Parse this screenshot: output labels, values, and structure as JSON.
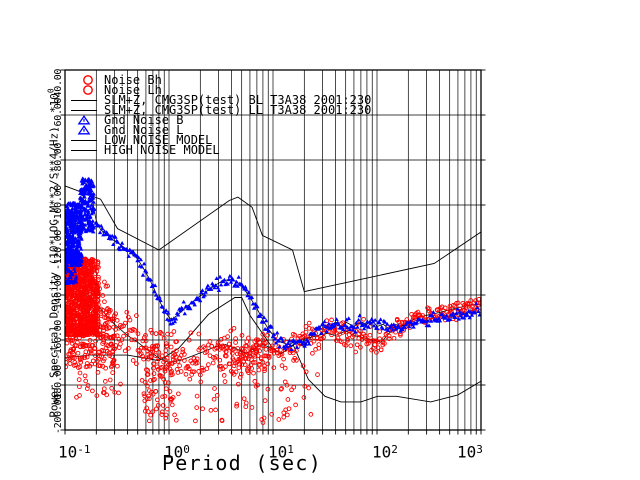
{
  "chart_data": {
    "type": "scatter",
    "title": "",
    "x_axis": {
      "label": "Period (sec)",
      "scale": "log",
      "min": 0.1,
      "max": 1000,
      "ticks": [
        {
          "base": "10",
          "exp": "-1"
        },
        {
          "base": "10",
          "exp": "0"
        },
        {
          "base": "10",
          "exp": "1"
        },
        {
          "base": "10",
          "exp": "2"
        },
        {
          "base": "10",
          "exp": "3"
        }
      ]
    },
    "y_axis": {
      "label": "Power Spectral Density (10*LOG M**2/S**4/Hz)",
      "multiplier": "*10",
      "multiplier_exp": "0",
      "max": -40,
      "min": -200,
      "tick_step": 20,
      "tick_labels": [
        "-40.00",
        "-60.00",
        "-80.00",
        "-100.00",
        "-120.00",
        "-140.00",
        "-160.00",
        "-180.00",
        "-200.00"
      ]
    },
    "legend": [
      {
        "symbol": "red-circle",
        "label": "Noise Bh"
      },
      {
        "symbol": "red-circle",
        "label": "Noise Lh"
      },
      {
        "symbol": "black-line",
        "label": "SLM+Z, CMG3SP(test) BL T3A38 2001:230"
      },
      {
        "symbol": "black-line",
        "label": "SLM+Z, CMG3SP(test) LL T3A38 2001:230"
      },
      {
        "symbol": "blue-triangle",
        "label": "Gnd Noise B"
      },
      {
        "symbol": "blue-triangle",
        "label": "Gnd Noise L"
      },
      {
        "symbol": "black-line",
        "label": "LOW NOISE MODEL"
      },
      {
        "symbol": "black-line",
        "label": "HIGH NOISE MODEL"
      }
    ],
    "colors": {
      "blue": "#0000ff",
      "red": "#ff0000",
      "line": "#000000",
      "background": "#ffffff"
    },
    "grid": true,
    "legend_position": "top-left-inside",
    "curves": {
      "nlnm": [
        [
          0.1,
          -168
        ],
        [
          0.17,
          -166.7
        ],
        [
          0.4,
          -166.7
        ],
        [
          0.8,
          -169.2
        ],
        [
          1.24,
          -163.7
        ],
        [
          2.4,
          -148.6
        ],
        [
          4.3,
          -141.1
        ],
        [
          5,
          -141.1
        ],
        [
          6,
          -149
        ],
        [
          10,
          -163.8
        ],
        [
          12,
          -166.2
        ],
        [
          15.6,
          -162.1
        ],
        [
          21.9,
          -177.5
        ],
        [
          31.6,
          -185
        ],
        [
          45,
          -187.5
        ],
        [
          70,
          -187.5
        ],
        [
          101,
          -185
        ],
        [
          154,
          -185
        ],
        [
          328,
          -187.5
        ],
        [
          600,
          -184.4
        ],
        [
          1000,
          -178.3
        ]
      ],
      "nhnm": [
        [
          0.1,
          -91.5
        ],
        [
          0.22,
          -97.4
        ],
        [
          0.32,
          -110.5
        ],
        [
          0.8,
          -120
        ],
        [
          3.8,
          -98
        ],
        [
          4.6,
          -96.5
        ],
        [
          6.3,
          -101
        ],
        [
          7.9,
          -113.5
        ],
        [
          15.4,
          -120
        ],
        [
          20,
          -138.5
        ],
        [
          354.8,
          -126
        ],
        [
          1000,
          -112
        ]
      ],
      "bl": [
        [
          0.1,
          -117
        ],
        [
          0.105,
          -111
        ],
        [
          0.11,
          -119
        ],
        [
          0.115,
          -106
        ],
        [
          0.12,
          -117
        ],
        [
          0.125,
          -104
        ],
        [
          0.13,
          -111
        ],
        [
          0.14,
          -101
        ],
        [
          0.15,
          -96
        ],
        [
          0.16,
          -91
        ],
        [
          0.17,
          -89
        ],
        [
          0.18,
          -95
        ],
        [
          0.19,
          -102
        ],
        [
          0.2,
          -107
        ],
        [
          0.22,
          -111
        ],
        [
          0.25,
          -113
        ],
        [
          0.3,
          -116
        ],
        [
          0.35,
          -118
        ],
        [
          0.4,
          -120
        ],
        [
          0.5,
          -124
        ],
        [
          0.6,
          -130
        ],
        [
          0.7,
          -136
        ],
        [
          0.8,
          -142
        ],
        [
          0.9,
          -147
        ],
        [
          1.05,
          -151
        ],
        [
          1.2,
          -149
        ],
        [
          1.5,
          -145
        ],
        [
          1.8,
          -142
        ],
        [
          2.2,
          -139
        ],
        [
          2.7,
          -136
        ],
        [
          3.2,
          -134
        ],
        [
          3.8,
          -133
        ],
        [
          4.5,
          -134
        ],
        [
          5.2,
          -137
        ],
        [
          6,
          -141
        ],
        [
          7,
          -146
        ],
        [
          8,
          -151
        ],
        [
          9,
          -155
        ],
        [
          10.5,
          -159
        ],
        [
          12,
          -161
        ],
        [
          14,
          -162
        ],
        [
          16,
          -161
        ],
        [
          18,
          -162
        ],
        [
          20,
          -163
        ],
        [
          23,
          -159
        ],
        [
          26,
          -156
        ],
        [
          30,
          -153
        ],
        [
          35,
          -154
        ],
        [
          40,
          -152
        ],
        [
          45,
          -154
        ],
        [
          50,
          -152
        ],
        [
          60,
          -154
        ],
        [
          70,
          -152
        ],
        [
          80,
          -153
        ],
        [
          90,
          -151
        ],
        [
          100,
          -154
        ],
        [
          115,
          -153
        ],
        [
          130,
          -155
        ],
        [
          150,
          -153
        ],
        [
          170,
          -154
        ],
        [
          200,
          -152
        ],
        [
          230,
          -153
        ],
        [
          260,
          -151
        ],
        [
          300,
          -152
        ],
        [
          350,
          -150
        ],
        [
          400,
          -151
        ],
        [
          450,
          -149
        ],
        [
          520,
          -150
        ],
        [
          600,
          -148
        ],
        [
          700,
          -149
        ],
        [
          800,
          -147
        ],
        [
          900,
          -146
        ]
      ],
      "ll": [
        [
          0.1,
          -138
        ],
        [
          0.12,
          -136
        ],
        [
          0.14,
          -139
        ],
        [
          0.17,
          -141
        ],
        [
          0.2,
          -144
        ],
        [
          0.25,
          -149
        ],
        [
          0.3,
          -153
        ],
        [
          0.4,
          -158
        ],
        [
          0.5,
          -161
        ],
        [
          0.65,
          -165
        ],
        [
          0.8,
          -168
        ],
        [
          1,
          -170
        ],
        [
          1.3,
          -169
        ],
        [
          1.7,
          -167
        ],
        [
          2.2,
          -165
        ],
        [
          2.8,
          -163
        ],
        [
          3.5,
          -162
        ],
        [
          4.5,
          -164
        ],
        [
          5.5,
          -166
        ],
        [
          6.5,
          -164
        ],
        [
          8,
          -162
        ],
        [
          10,
          -164
        ],
        [
          12,
          -166
        ],
        [
          15,
          -163
        ],
        [
          18,
          -160
        ],
        [
          22,
          -159
        ],
        [
          27,
          -158
        ],
        [
          33,
          -157
        ],
        [
          40,
          -158
        ],
        [
          50,
          -156
        ],
        [
          60,
          -158
        ],
        [
          75,
          -159
        ],
        [
          90,
          -160
        ],
        [
          110,
          -161
        ],
        [
          130,
          -157
        ],
        [
          160,
          -154
        ],
        [
          200,
          -152
        ],
        [
          250,
          -150
        ],
        [
          300,
          -149
        ],
        [
          380,
          -148
        ],
        [
          460,
          -147
        ],
        [
          560,
          -146
        ],
        [
          700,
          -145
        ],
        [
          850,
          -144
        ]
      ]
    },
    "series": [
      {
        "name": "LOW NOISE MODEL",
        "render": "line",
        "curve": "nlnm",
        "color": "#000000",
        "width": 0.9
      },
      {
        "name": "HIGH NOISE MODEL",
        "render": "line",
        "curve": "nhnm",
        "color": "#000000",
        "width": 0.9
      },
      {
        "name": "SLM+Z, CMG3SP(test) BL T3A38 2001:230",
        "render": "line",
        "curve": "bl",
        "color": "#000000",
        "width": 0.8
      },
      {
        "name": "SLM+Z, CMG3SP(test) LL T3A38 2001:230",
        "render": "line",
        "curve": "ll",
        "color": "#000000",
        "width": 0.8
      },
      {
        "name": "Noise Lh",
        "render": "scatter",
        "marker": "open-circle",
        "curve": "ll",
        "color": "#ff0000",
        "step": 1.6,
        "passes": 2,
        "jitter": [
          [
            0.1,
            8
          ],
          [
            0.25,
            7
          ],
          [
            0.5,
            5
          ],
          [
            1,
            4.5
          ],
          [
            10,
            4
          ],
          [
            50,
            3
          ],
          [
            120,
            2.4
          ],
          [
            1000,
            1.8
          ]
        ],
        "clusters": [
          {
            "p0": 0.1,
            "p1": 0.21,
            "v0": -158,
            "v1": -124,
            "n": 850
          },
          {
            "p0": 0.1,
            "p1": 0.3,
            "v0": -172,
            "v1": -146,
            "n": 180
          },
          {
            "p0": 0.12,
            "p1": 0.38,
            "v0": -186,
            "v1": -158,
            "n": 45
          },
          {
            "p0": 0.55,
            "p1": 1.3,
            "v0": -196,
            "v1": -156,
            "n": 90
          },
          {
            "p0": 1.5,
            "p1": 30,
            "v0": -198,
            "v1": -168,
            "n": 60
          },
          {
            "p0": 3,
            "p1": 9,
            "v0": -176,
            "v1": -162,
            "n": 60
          }
        ]
      },
      {
        "name": "Gnd Noise B",
        "render": "scatter",
        "marker": "triangle",
        "curve": "bl",
        "color": "#0000ff",
        "step": 1.1,
        "passes": 1,
        "jitter": [
          [
            0.1,
            7
          ],
          [
            0.13,
            5
          ],
          [
            0.16,
            3
          ],
          [
            0.2,
            1.6
          ],
          [
            0.5,
            1.3
          ],
          [
            1000,
            1.2
          ]
        ],
        "clusters": [
          {
            "p0": 0.1,
            "p1": 0.145,
            "v0": -127,
            "v1": -99,
            "n": 380
          },
          {
            "p0": 0.14,
            "p1": 0.19,
            "v0": -112,
            "v1": -88,
            "n": 160
          },
          {
            "p0": 0.1,
            "p1": 0.13,
            "v0": -135,
            "v1": -120,
            "n": 80
          }
        ]
      }
    ]
  }
}
